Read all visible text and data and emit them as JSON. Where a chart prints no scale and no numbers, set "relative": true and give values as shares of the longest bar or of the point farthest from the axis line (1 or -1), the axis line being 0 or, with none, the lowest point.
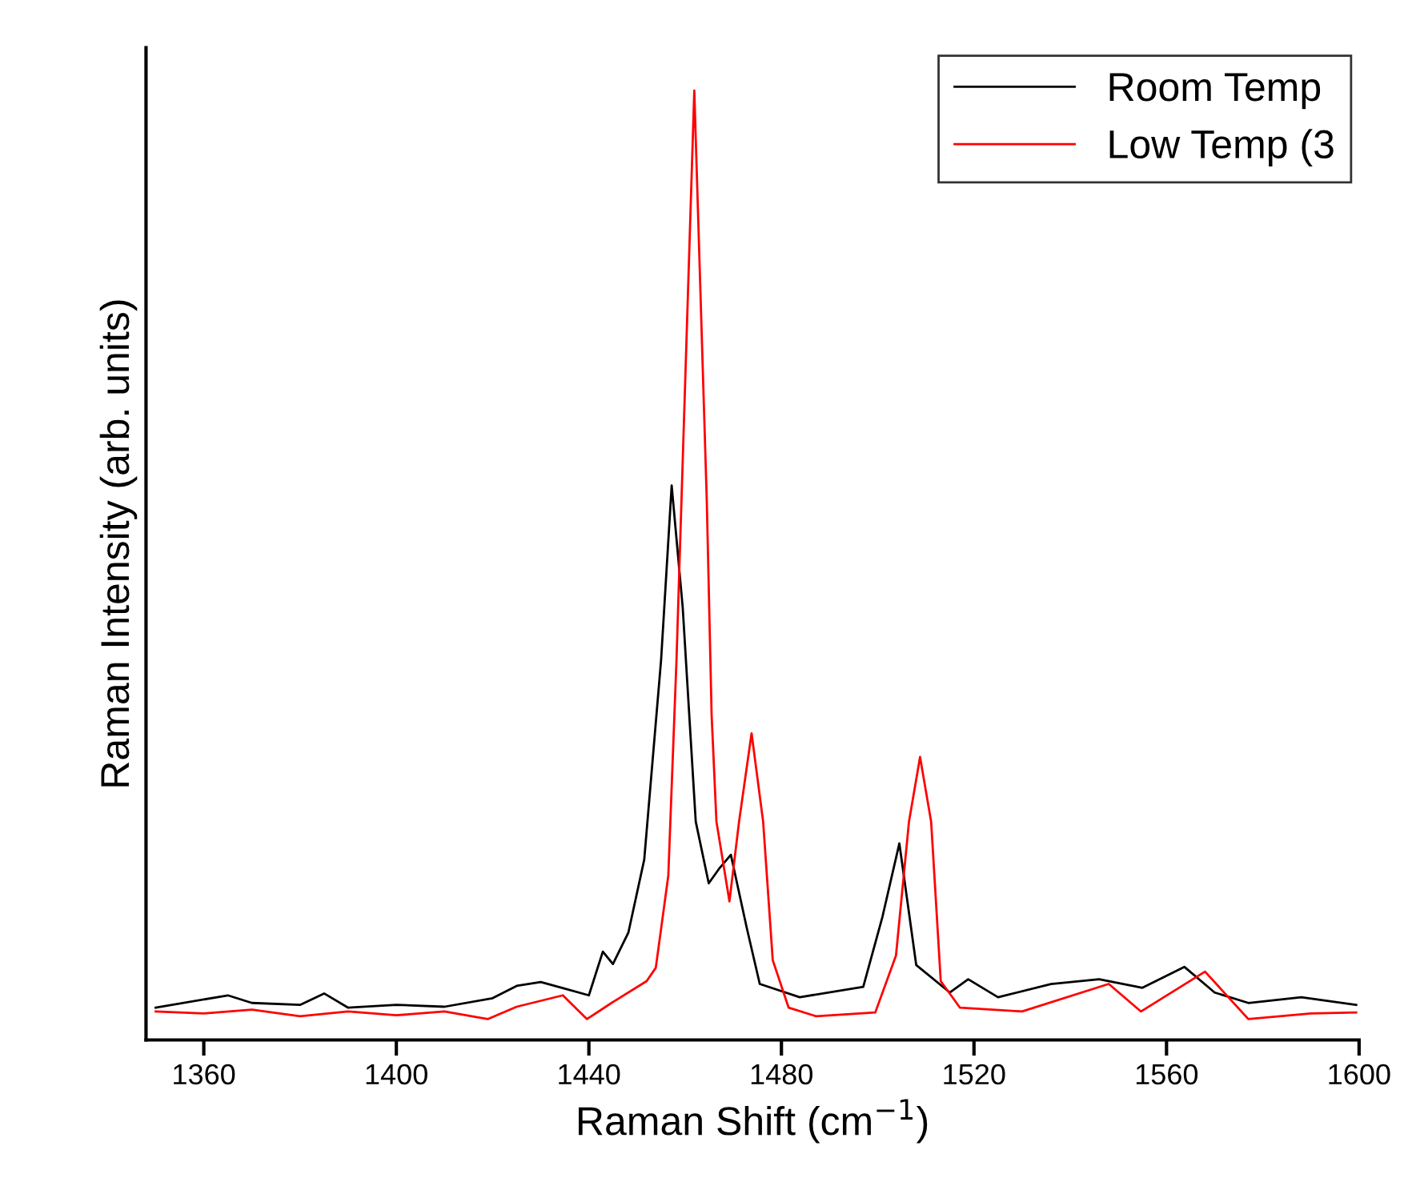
{
  "chart_data": {
    "type": "line",
    "relative": true,
    "xlabel": "Raman Shift (cm$^{−1}$)",
    "ylabel": "Raman Intensity (arb. units)",
    "xlim": [
      1348,
      1600
    ],
    "xticks": [
      1360,
      1400,
      1440,
      1480,
      1520,
      1560,
      1600
    ],
    "legend": "top right",
    "grid": false,
    "marker": "none",
    "line_style": "solid",
    "series": [
      {
        "name": "Room Temp",
        "color": "#000000",
        "x": [
          1350,
          1365,
          1370,
          1380,
          1385,
          1390,
          1400,
          1410,
          1420,
          1425,
          1430,
          1435,
          1440,
          1442.9,
          1445,
          1448.2,
          1451.5,
          1455,
          1457.2,
          1459.5,
          1462.2,
          1464.9,
          1467,
          1469.5,
          1472.8,
          1475.5,
          1483.8,
          1497,
          1501,
          1504.5,
          1508,
          1515,
          1518.8,
          1525,
          1536,
          1546,
          1555,
          1563.7,
          1570,
          1577,
          1588,
          1599.4
        ],
        "values": [
          0.034,
          0.047,
          0.039,
          0.037,
          0.049,
          0.034,
          0.037,
          0.035,
          0.044,
          0.057,
          0.061,
          0.054,
          0.047,
          0.093,
          0.08,
          0.113,
          0.19,
          0.4,
          0.584,
          0.455,
          0.23,
          0.165,
          0.18,
          0.195,
          0.118,
          0.059,
          0.045,
          0.056,
          0.13,
          0.207,
          0.079,
          0.05,
          0.064,
          0.045,
          0.059,
          0.064,
          0.055,
          0.077,
          0.05,
          0.039,
          0.045,
          0.037
        ]
      },
      {
        "name": "Low Temp (3",
        "color": "#ff0000",
        "x": [
          1350,
          1360,
          1370,
          1380,
          1390,
          1400,
          1410,
          1419,
          1425,
          1434.6,
          1439.6,
          1445,
          1452,
          1453.9,
          1456.5,
          1458.2,
          1461.9,
          1464.5,
          1465.5,
          1466.5,
          1469.2,
          1471.2,
          1473.8,
          1476.2,
          1478.2,
          1481.5,
          1487.2,
          1499.5,
          1503.8,
          1506.5,
          1508.8,
          1511.1,
          1513.1,
          1517.1,
          1530,
          1548,
          1554.7,
          1568,
          1577,
          1590,
          1599.4
        ],
        "values": [
          0.03,
          0.028,
          0.032,
          0.025,
          0.03,
          0.026,
          0.03,
          0.022,
          0.035,
          0.047,
          0.022,
          0.04,
          0.062,
          0.076,
          0.173,
          0.4,
          1.0,
          0.567,
          0.342,
          0.23,
          0.146,
          0.23,
          0.323,
          0.23,
          0.084,
          0.034,
          0.025,
          0.029,
          0.089,
          0.23,
          0.298,
          0.23,
          0.062,
          0.034,
          0.03,
          0.059,
          0.03,
          0.072,
          0.022,
          0.028,
          0.029
        ]
      }
    ]
  }
}
